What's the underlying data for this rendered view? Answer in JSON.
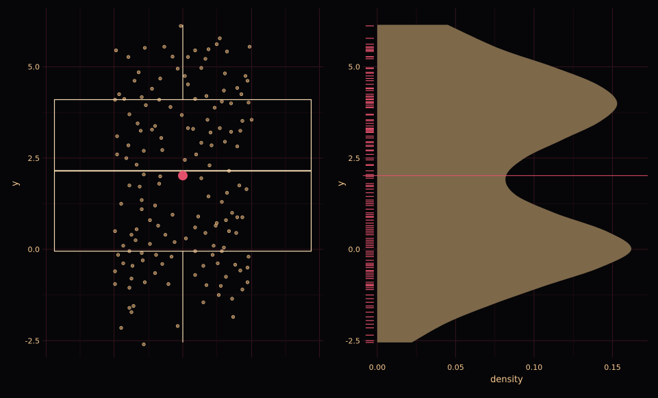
{
  "colors": {
    "background": "#060608",
    "grid_major": "#34121c",
    "grid_minor": "#1f0b12",
    "text": "#f2c48d",
    "box": "#f7dcb4",
    "points_fill": "#b88a5a",
    "points_stroke": "#f3cf9c",
    "mean": "#e2506b",
    "density_fill": "#7d684a",
    "rug": "#e2506b"
  },
  "chart_data": [
    {
      "type": "scatter",
      "subtype": "boxplot-with-jitter",
      "title": "",
      "xlabel": "",
      "ylabel": "y",
      "ylim": [
        -2.85,
        6.35
      ],
      "xlim": [
        -1.35,
        1.35
      ],
      "y_ticks": [
        -2.5,
        0,
        2.5,
        5
      ],
      "y_tick_labels": [
        "-2.5",
        "0.0",
        "2.5",
        "5.0"
      ],
      "grid": true,
      "box": {
        "q1": -0.05,
        "median": 2.15,
        "q3": 4.1,
        "whisker_low": -2.55,
        "whisker_high": 6.15
      },
      "mean": 2.02,
      "points": [
        [
          -0.02,
          6.12
        ],
        [
          -0.65,
          5.45
        ],
        [
          -0.37,
          5.52
        ],
        [
          -0.18,
          5.55
        ],
        [
          0.12,
          5.45
        ],
        [
          0.25,
          5.48
        ],
        [
          0.36,
          5.78
        ],
        [
          0.33,
          5.62
        ],
        [
          0.05,
          5.27
        ],
        [
          0.22,
          5.22
        ],
        [
          0.43,
          5.42
        ],
        [
          0.65,
          5.55
        ],
        [
          -0.53,
          5.27
        ],
        [
          -0.1,
          5.28
        ],
        [
          -0.22,
          4.68
        ],
        [
          -0.43,
          4.85
        ],
        [
          -0.05,
          4.95
        ],
        [
          0.18,
          4.97
        ],
        [
          0.41,
          4.82
        ],
        [
          0.61,
          4.75
        ],
        [
          0.63,
          4.62
        ],
        [
          0.02,
          4.75
        ],
        [
          0.05,
          4.52
        ],
        [
          -0.3,
          4.4
        ],
        [
          -0.47,
          4.62
        ],
        [
          -0.62,
          4.25
        ],
        [
          0.4,
          4.35
        ],
        [
          0.53,
          4.42
        ],
        [
          0.57,
          4.25
        ],
        [
          -0.66,
          4.1
        ],
        [
          -0.57,
          4.12
        ],
        [
          -0.4,
          4.17
        ],
        [
          -0.23,
          4.1
        ],
        [
          0.12,
          4.12
        ],
        [
          0.23,
          4.2
        ],
        [
          0.38,
          4.05
        ],
        [
          0.47,
          4.0
        ],
        [
          0.64,
          4.02
        ],
        [
          -0.36,
          3.95
        ],
        [
          -0.12,
          3.9
        ],
        [
          0.31,
          3.88
        ],
        [
          -0.52,
          3.7
        ],
        [
          -0.01,
          3.68
        ],
        [
          0.24,
          3.55
        ],
        [
          0.58,
          3.52
        ],
        [
          0.67,
          3.55
        ],
        [
          -0.44,
          3.45
        ],
        [
          -0.27,
          3.38
        ],
        [
          0.1,
          3.3
        ],
        [
          0.36,
          3.32
        ],
        [
          0.47,
          3.22
        ],
        [
          -0.41,
          3.25
        ],
        [
          -0.3,
          3.28
        ],
        [
          0.05,
          3.32
        ],
        [
          0.27,
          3.2
        ],
        [
          0.56,
          3.25
        ],
        [
          -0.64,
          3.1
        ],
        [
          -0.21,
          3.05
        ],
        [
          0.18,
          2.92
        ],
        [
          0.41,
          2.95
        ],
        [
          -0.53,
          2.85
        ],
        [
          0.28,
          2.85
        ],
        [
          0.53,
          2.82
        ],
        [
          -0.38,
          2.7
        ],
        [
          -0.2,
          2.72
        ],
        [
          0.13,
          2.6
        ],
        [
          -0.64,
          2.6
        ],
        [
          -0.55,
          2.5
        ],
        [
          -0.45,
          2.32
        ],
        [
          0.02,
          2.45
        ],
        [
          0.26,
          2.3
        ],
        [
          0.45,
          2.15
        ],
        [
          -0.38,
          2.05
        ],
        [
          -0.22,
          2.0
        ],
        [
          0.18,
          1.95
        ],
        [
          0.55,
          1.75
        ],
        [
          -0.52,
          1.75
        ],
        [
          -0.42,
          1.72
        ],
        [
          -0.23,
          1.8
        ],
        [
          0.43,
          1.55
        ],
        [
          0.25,
          1.45
        ],
        [
          0.62,
          1.65
        ],
        [
          -0.4,
          1.35
        ],
        [
          0.38,
          1.3
        ],
        [
          -0.6,
          1.25
        ],
        [
          -0.27,
          1.2
        ],
        [
          -0.4,
          1.1
        ],
        [
          0.48,
          1.0
        ],
        [
          -0.1,
          0.95
        ],
        [
          0.53,
          0.88
        ],
        [
          0.58,
          0.88
        ],
        [
          0.15,
          0.9
        ],
        [
          0.42,
          0.8
        ],
        [
          0.33,
          0.72
        ],
        [
          0.32,
          0.65
        ],
        [
          -0.32,
          0.8
        ],
        [
          -0.24,
          0.65
        ],
        [
          0.12,
          0.6
        ],
        [
          -0.45,
          0.55
        ],
        [
          -0.66,
          0.5
        ],
        [
          -0.5,
          0.4
        ],
        [
          -0.17,
          0.4
        ],
        [
          0.22,
          0.45
        ],
        [
          0.45,
          0.5
        ],
        [
          0.52,
          0.45
        ],
        [
          -0.58,
          0.1
        ],
        [
          -0.46,
          0.25
        ],
        [
          -0.32,
          0.15
        ],
        [
          -0.08,
          0.2
        ],
        [
          0.3,
          0.1
        ],
        [
          0.4,
          0.05
        ],
        [
          0.03,
          0.3
        ],
        [
          -0.63,
          -0.15
        ],
        [
          -0.52,
          -0.05
        ],
        [
          -0.4,
          -0.1
        ],
        [
          -0.26,
          -0.15
        ],
        [
          -0.11,
          -0.2
        ],
        [
          0.12,
          -0.05
        ],
        [
          0.29,
          -0.15
        ],
        [
          0.38,
          -0.05
        ],
        [
          0.64,
          -0.2
        ],
        [
          -0.58,
          -0.38
        ],
        [
          -0.49,
          -0.45
        ],
        [
          -0.39,
          -0.3
        ],
        [
          -0.2,
          -0.4
        ],
        [
          0.2,
          -0.45
        ],
        [
          0.34,
          -0.38
        ],
        [
          0.51,
          -0.42
        ],
        [
          0.63,
          -0.5
        ],
        [
          -0.66,
          -0.6
        ],
        [
          -0.27,
          -0.65
        ],
        [
          -0.5,
          -0.8
        ],
        [
          0.12,
          -0.7
        ],
        [
          0.42,
          -0.75
        ],
        [
          0.56,
          -0.58
        ],
        [
          -0.66,
          -0.95
        ],
        [
          -0.37,
          -0.9
        ],
        [
          -0.14,
          -0.95
        ],
        [
          0.23,
          -0.98
        ],
        [
          0.37,
          -1.0
        ],
        [
          0.63,
          -0.9
        ],
        [
          -0.52,
          -1.05
        ],
        [
          0.58,
          -1.1
        ],
        [
          0.35,
          -1.25
        ],
        [
          0.48,
          -1.35
        ],
        [
          -0.48,
          -1.55
        ],
        [
          0.2,
          -1.45
        ],
        [
          -0.5,
          -1.72
        ],
        [
          -0.52,
          -1.6
        ],
        [
          0.49,
          -1.85
        ],
        [
          -0.05,
          -2.1
        ],
        [
          -0.6,
          -2.15
        ],
        [
          -0.38,
          -2.6
        ]
      ]
    },
    {
      "type": "area",
      "subtype": "density",
      "title": "",
      "xlabel": "density",
      "ylabel": "y",
      "xlim": [
        -0.005,
        0.17
      ],
      "ylim": [
        -2.85,
        6.35
      ],
      "x_ticks": [
        0,
        0.05,
        0.1,
        0.15
      ],
      "x_tick_labels": [
        "0.00",
        "0.05",
        "0.10",
        "0.15"
      ],
      "y_ticks": [
        -2.5,
        0,
        2.5,
        5
      ],
      "y_tick_labels": [
        "-2.5",
        "0.0",
        "2.5",
        "5.0"
      ],
      "grid": true,
      "mean_line": 2.02,
      "density": {
        "y": [
          -2.55,
          -2.0,
          -1.5,
          -1.0,
          -0.5,
          0.0,
          0.5,
          1.0,
          1.5,
          2.0,
          2.5,
          3.0,
          3.5,
          4.0,
          4.5,
          5.0,
          5.5,
          6.15
        ],
        "x": [
          0.022,
          0.045,
          0.074,
          0.107,
          0.142,
          0.162,
          0.146,
          0.113,
          0.088,
          0.082,
          0.094,
          0.118,
          0.142,
          0.153,
          0.141,
          0.112,
          0.078,
          0.045
        ]
      },
      "rug": [
        -2.55,
        -2.5,
        -2.35,
        -2.15,
        -2.05,
        -1.95,
        -1.85,
        -1.72,
        -1.6,
        -1.55,
        -1.45,
        -1.35,
        -1.25,
        -1.1,
        -1.05,
        -1.0,
        -0.98,
        -0.95,
        -0.9,
        -0.8,
        -0.75,
        -0.7,
        -0.65,
        -0.6,
        -0.58,
        -0.5,
        -0.45,
        -0.42,
        -0.38,
        -0.3,
        -0.2,
        -0.15,
        -0.1,
        -0.05,
        0.05,
        0.1,
        0.15,
        0.2,
        0.25,
        0.3,
        0.4,
        0.45,
        0.5,
        0.55,
        0.6,
        0.65,
        0.72,
        0.8,
        0.88,
        0.9,
        0.95,
        1.0,
        1.1,
        1.2,
        1.25,
        1.3,
        1.35,
        1.45,
        1.55,
        1.65,
        1.72,
        1.75,
        1.8,
        1.95,
        2.0,
        2.05,
        2.15,
        2.3,
        2.32,
        2.45,
        2.5,
        2.6,
        2.7,
        2.72,
        2.82,
        2.85,
        2.92,
        2.95,
        3.05,
        3.1,
        3.2,
        3.22,
        3.25,
        3.28,
        3.3,
        3.32,
        3.38,
        3.45,
        3.52,
        3.55,
        3.68,
        3.7,
        3.88,
        3.9,
        3.95,
        4.0,
        4.02,
        4.05,
        4.1,
        4.12,
        4.17,
        4.2,
        4.25,
        4.35,
        4.4,
        4.42,
        4.52,
        4.62,
        4.68,
        4.75,
        4.82,
        4.85,
        4.95,
        4.97,
        5.22,
        5.27,
        5.28,
        5.42,
        5.45,
        5.48,
        5.52,
        5.55,
        5.62,
        5.78,
        6.12
      ]
    }
  ]
}
